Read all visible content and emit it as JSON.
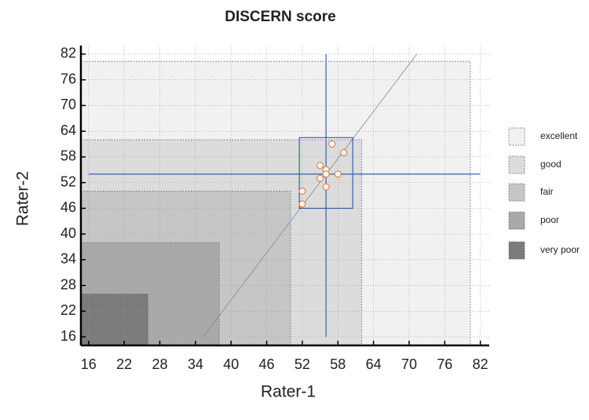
{
  "chart_data": {
    "type": "scatter",
    "title": "DISCERN score",
    "x_label": "Rater-1",
    "y_label": "Rater-2",
    "x": [
      52,
      52,
      55,
      55,
      56,
      56,
      56,
      57,
      58,
      59
    ],
    "y": [
      50,
      47,
      56,
      53,
      55,
      54,
      51,
      61,
      54,
      59
    ],
    "color": "#d2773c",
    "xlim": [
      14.7,
      83.5
    ],
    "ylim": [
      14,
      84
    ],
    "xticks": [
      16,
      22,
      28,
      34,
      40,
      46,
      52,
      58,
      64,
      70,
      76,
      82
    ],
    "yticks": [
      16,
      22,
      28,
      34,
      40,
      46,
      52,
      58,
      64,
      70,
      76,
      82
    ],
    "grid": true,
    "regions": [
      {
        "name": "excellent",
        "color": "#f1f1f1",
        "upper": 80.3
      },
      {
        "name": "good",
        "color": "#dcdcdc",
        "upper": 62
      },
      {
        "name": "fair",
        "color": "#c6c6c6",
        "upper": 50
      },
      {
        "name": "poor",
        "color": "#a9a9a9",
        "upper": 38
      },
      {
        "name": "very poor",
        "color": "#7b7b7b",
        "upper": 26
      }
    ],
    "mean": {
      "x": 56,
      "y": 54,
      "color": "#3b5fa0"
    },
    "range_box": {
      "x": [
        51.5,
        60.5
      ],
      "y": [
        46,
        62.5
      ]
    },
    "fit_line": {
      "x": [
        35.3,
        71.3
      ],
      "y": [
        16,
        82
      ],
      "color": "#888888"
    },
    "legend": "right"
  }
}
